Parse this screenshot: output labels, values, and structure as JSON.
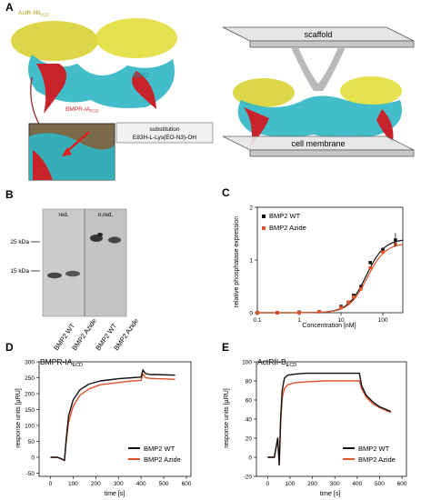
{
  "panels": {
    "A": {
      "letter": "A",
      "labels": {
        "actr": "ActR-IIB",
        "actr_sub": "ECD",
        "bmp2": "BMP2",
        "bmpr": "BMPR-IA",
        "bmpr_sub": "ECD",
        "scaffold": "scaffold",
        "membrane": "cell membrane",
        "subst_title": "substitution",
        "subst_text": "E83H-L-Lys(EO-N3)-OH"
      },
      "colors": {
        "actr": "#d8cf2a",
        "bmp2": "#2fb6c4",
        "bmpr": "#c8232b",
        "plane": "#d9d9d9"
      }
    },
    "B": {
      "letter": "B",
      "lane_group_1": "red.",
      "lane_group_2": "n.red.",
      "mw_markers": [
        "25 kDa",
        "15 kDa"
      ],
      "lanes": [
        "BMP2 WT",
        "BMP2 Azide",
        "BMP2 WT",
        "BMP2 Azide"
      ]
    },
    "C": {
      "letter": "C",
      "chart_data": {
        "type": "scatter",
        "xlabel": "Concentration [nM]",
        "ylabel": "relative phosphatase expression",
        "xscale": "log",
        "xlim": [
          0.1,
          300
        ],
        "ylim": [
          0,
          2
        ],
        "xticks": [
          "0.1",
          "1",
          "10",
          "100"
        ],
        "yticks": [
          "0",
          "1",
          "2"
        ],
        "legend_position": "top-left",
        "series": [
          {
            "name": "BMP2 WT",
            "color": "#111111",
            "x": [
              0.1,
              0.3,
              1,
              3,
              10,
              15,
              20,
              30,
              50,
              100,
              200
            ],
            "y": [
              0.0,
              0.0,
              0.01,
              0.02,
              0.12,
              0.2,
              0.33,
              0.5,
              0.95,
              1.2,
              1.38
            ]
          },
          {
            "name": "BMP2 Azide",
            "color": "#e0522b",
            "x": [
              0.1,
              0.3,
              1,
              3,
              10,
              15,
              20,
              30,
              50,
              100,
              200
            ],
            "y": [
              0.0,
              0.0,
              0.0,
              0.02,
              0.1,
              0.2,
              0.3,
              0.45,
              0.85,
              1.15,
              1.3
            ]
          }
        ]
      }
    },
    "D": {
      "letter": "D",
      "chart_data": {
        "type": "line",
        "title": "BMPR-IA",
        "title_sub": "ECD",
        "xlabel": "time [s]",
        "ylabel": "response units [µRU]",
        "xlim": [
          -50,
          620
        ],
        "ylim": [
          -60,
          300
        ],
        "xticks": [
          0,
          100,
          200,
          300,
          400,
          500,
          600
        ],
        "yticks": [
          -50,
          0,
          50,
          100,
          150,
          200,
          250,
          300
        ],
        "legend_position": "bottom-right",
        "series": [
          {
            "name": "BMP2 WT",
            "color": "#111111",
            "x": [
              0,
              30,
              50,
              62,
              70,
              80,
              100,
              130,
              170,
              220,
              300,
              360,
              400,
              408,
              412,
              420,
              440,
              470,
              520,
              550
            ],
            "y": [
              0,
              0,
              -5,
              -10,
              60,
              130,
              180,
              212,
              230,
              240,
              247,
              250,
              252,
              275,
              270,
              263,
              260,
              260,
              259,
              258
            ]
          },
          {
            "name": "BMP2 Azide",
            "color": "#e0522b",
            "x": [
              0,
              30,
              50,
              62,
              70,
              80,
              100,
              130,
              170,
              220,
              300,
              360,
              400,
              408,
              412,
              420,
              440,
              470,
              520,
              550
            ],
            "y": [
              0,
              0,
              -5,
              -10,
              50,
              110,
              160,
              195,
              215,
              228,
              235,
              240,
              242,
              262,
              258,
              250,
              248,
              247,
              246,
              245
            ]
          }
        ]
      }
    },
    "E": {
      "letter": "E",
      "chart_data": {
        "type": "line",
        "title": "ActRII-B",
        "title_sub": "ECD",
        "xlabel": "time [s]",
        "ylabel": "response units [µRU]",
        "xlim": [
          -50,
          620
        ],
        "ylim": [
          -20,
          100
        ],
        "xticks": [
          0,
          100,
          200,
          300,
          400,
          500,
          600
        ],
        "yticks": [
          -20,
          0,
          20,
          40,
          60,
          80,
          100
        ],
        "legend_position": "bottom-right",
        "series": [
          {
            "name": "BMP2 WT",
            "color": "#111111",
            "x": [
              0,
              30,
              45,
              52,
              58,
              65,
              75,
              90,
              120,
              170,
              250,
              330,
              410,
              420,
              440,
              470,
              500,
              530,
              550
            ],
            "y": [
              0,
              0,
              20,
              -8,
              40,
              70,
              83,
              86,
              87,
              88,
              88,
              88,
              88,
              75,
              65,
              58,
              53,
              50,
              48
            ]
          },
          {
            "name": "BMP2 Azide",
            "color": "#e0522b",
            "x": [
              0,
              30,
              45,
              52,
              58,
              65,
              75,
              90,
              120,
              170,
              250,
              330,
              410,
              420,
              440,
              470,
              500,
              530,
              550
            ],
            "y": [
              0,
              0,
              20,
              -8,
              35,
              62,
              72,
              76,
              78,
              79,
              80,
              80,
              80,
              72,
              63,
              56,
              52,
              49,
              47
            ]
          }
        ]
      }
    }
  }
}
